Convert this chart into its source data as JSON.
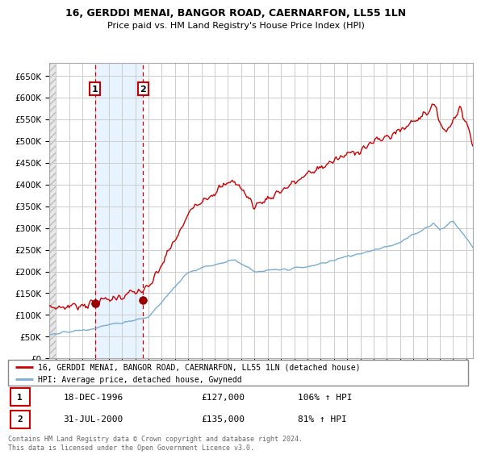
{
  "title1": "16, GERDDI MENAI, BANGOR ROAD, CAERNARFON, LL55 1LN",
  "title2": "Price paid vs. HM Land Registry's House Price Index (HPI)",
  "legend_line1": "16, GERDDI MENAI, BANGOR ROAD, CAERNARFON, LL55 1LN (detached house)",
  "legend_line2": "HPI: Average price, detached house, Gwynedd",
  "transaction1_date": "18-DEC-1996",
  "transaction1_price": 127000,
  "transaction1_hpi": "106% ↑ HPI",
  "transaction1_label": "1",
  "transaction1_x": 1996.96,
  "transaction2_date": "31-JUL-2000",
  "transaction2_price": 135000,
  "transaction2_hpi": "81% ↑ HPI",
  "transaction2_label": "2",
  "transaction2_x": 2000.58,
  "xmin": 1993.5,
  "xmax": 2025.5,
  "ymin": 0,
  "ymax": 680000,
  "yticks": [
    0,
    50000,
    100000,
    150000,
    200000,
    250000,
    300000,
    350000,
    400000,
    450000,
    500000,
    550000,
    600000,
    650000
  ],
  "grid_color": "#cccccc",
  "red_line_color": "#cc0000",
  "blue_line_color": "#7aadd4",
  "transaction_dot_color": "#990000",
  "vline_color": "#cc0000",
  "hatch_region_end": 1994.0,
  "blue_shade_start": 1996.96,
  "blue_shade_end": 2000.58,
  "footer_text": "Contains HM Land Registry data © Crown copyright and database right 2024.\nThis data is licensed under the Open Government Licence v3.0."
}
